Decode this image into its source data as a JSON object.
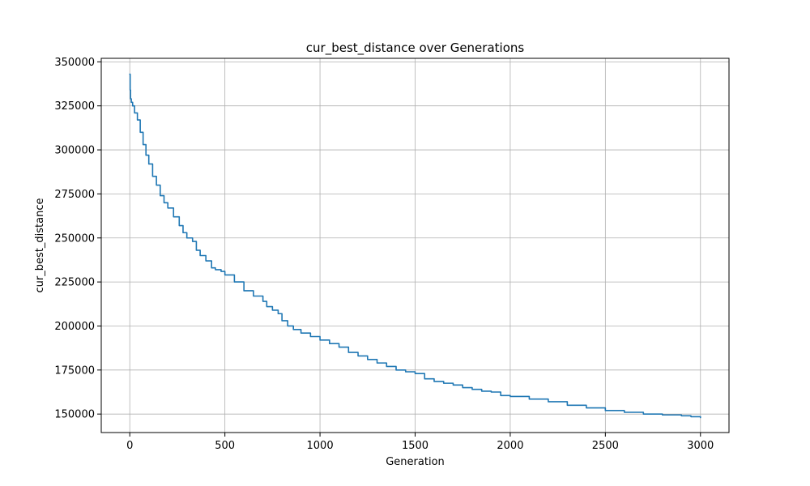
{
  "chart_data": {
    "type": "line",
    "title": "cur_best_distance over Generations",
    "xlabel": "Generation",
    "ylabel": "cur_best_distance",
    "xlim": [
      -150,
      3150
    ],
    "ylim": [
      139500,
      352000
    ],
    "xticks": [
      0,
      500,
      1000,
      1500,
      2000,
      2500,
      3000
    ],
    "xtick_labels": [
      "0",
      "500",
      "1000",
      "1500",
      "2000",
      "2500",
      "3000"
    ],
    "yticks": [
      150000,
      175000,
      200000,
      225000,
      250000,
      275000,
      300000,
      325000,
      350000
    ],
    "ytick_labels": [
      "150000",
      "175000",
      "200000",
      "225000",
      "250000",
      "275000",
      "300000",
      "325000",
      "350000"
    ],
    "grid": true,
    "legend": "none",
    "series": [
      {
        "color": "#1f77b4",
        "x": [
          0,
          2,
          4,
          8,
          15,
          25,
          40,
          55,
          70,
          85,
          100,
          120,
          140,
          160,
          180,
          200,
          230,
          260,
          280,
          300,
          330,
          350,
          370,
          400,
          430,
          450,
          480,
          500,
          550,
          600,
          650,
          700,
          720,
          750,
          780,
          800,
          830,
          860,
          900,
          950,
          1000,
          1050,
          1100,
          1150,
          1200,
          1250,
          1300,
          1350,
          1400,
          1450,
          1500,
          1550,
          1600,
          1650,
          1700,
          1750,
          1800,
          1850,
          1900,
          1950,
          2000,
          2100,
          2200,
          2300,
          2400,
          2500,
          2600,
          2700,
          2800,
          2900,
          2950,
          3000
        ],
        "values": [
          343000,
          334000,
          329000,
          327000,
          325000,
          321000,
          317000,
          310000,
          303000,
          297000,
          292000,
          285000,
          280000,
          274000,
          270000,
          267000,
          262000,
          257000,
          253000,
          250000,
          248000,
          243000,
          240000,
          237000,
          233000,
          232000,
          231000,
          229000,
          225000,
          220000,
          217000,
          214000,
          211000,
          209000,
          207000,
          203000,
          200000,
          198000,
          196000,
          194000,
          192000,
          190000,
          188000,
          185000,
          183000,
          181000,
          179000,
          177000,
          175000,
          174000,
          173000,
          170000,
          168500,
          167500,
          166500,
          165000,
          164000,
          163000,
          162500,
          160500,
          160000,
          158500,
          157000,
          155000,
          153500,
          152000,
          151000,
          150000,
          149500,
          149000,
          148500,
          148000
        ]
      }
    ]
  }
}
